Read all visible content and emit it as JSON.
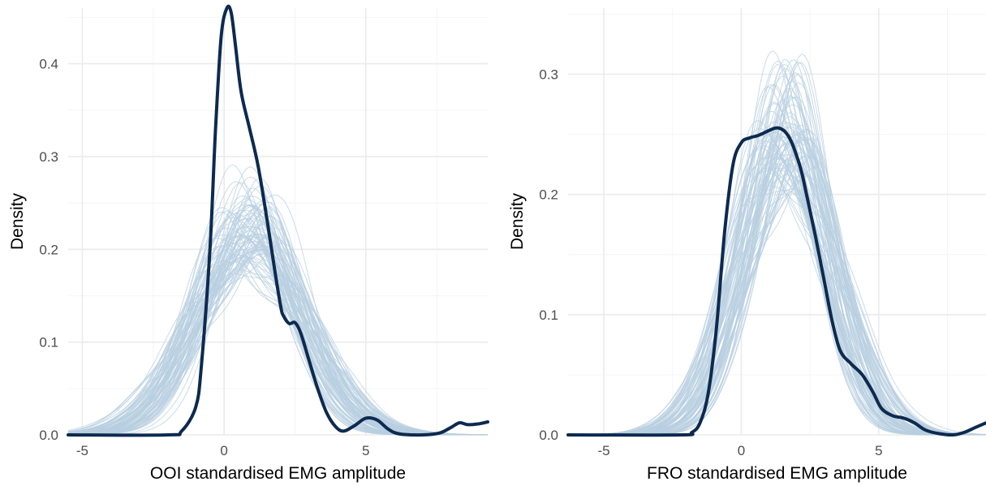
{
  "chart_data": [
    {
      "type": "line",
      "xlabel": "OOI standardised EMG amplitude",
      "ylabel": "Density",
      "xlim": [
        -5.5,
        9.3
      ],
      "ylim": [
        0,
        0.46
      ],
      "x_ticks": [
        -5,
        0,
        5
      ],
      "y_ticks": [
        0.0,
        0.1,
        0.2,
        0.3,
        0.4
      ],
      "y_tick_labels": [
        "0.0",
        "0.1",
        "0.2",
        "0.3",
        "0.4"
      ],
      "grid": true,
      "colors": {
        "observed": "#0d2a4f",
        "simulated": "#b8cfe0"
      },
      "series": [
        {
          "role": "observed",
          "x": [
            -5.5,
            -2.0,
            -1.5,
            -1.0,
            -0.8,
            -0.5,
            -0.3,
            -0.1,
            0.1,
            0.25,
            0.4,
            0.6,
            0.9,
            1.2,
            1.5,
            1.8,
            2.0,
            2.1,
            2.3,
            2.5,
            2.7,
            3.0,
            3.3,
            3.6,
            3.9,
            4.2,
            4.6,
            5.0,
            5.4,
            5.8,
            6.2,
            7.0,
            7.6,
            8.0,
            8.3,
            8.6,
            9.0,
            9.3
          ],
          "y": [
            0.0,
            0.0,
            0.004,
            0.03,
            0.075,
            0.2,
            0.33,
            0.43,
            0.46,
            0.455,
            0.42,
            0.37,
            0.33,
            0.29,
            0.235,
            0.175,
            0.138,
            0.128,
            0.12,
            0.121,
            0.11,
            0.08,
            0.05,
            0.025,
            0.01,
            0.004,
            0.01,
            0.018,
            0.016,
            0.006,
            0.001,
            0.0,
            0.002,
            0.008,
            0.013,
            0.011,
            0.012,
            0.014
          ]
        }
      ],
      "simulated_draws": {
        "count": 90,
        "shape": "normal",
        "mean_range": [
          0.3,
          1.5
        ],
        "sd_range": [
          1.45,
          2.2
        ]
      }
    },
    {
      "type": "line",
      "xlabel": "FRO standardised EMG amplitude",
      "ylabel": "Density",
      "xlim": [
        -6.3,
        8.9
      ],
      "ylim": [
        0,
        0.355
      ],
      "x_ticks": [
        -5,
        0,
        5
      ],
      "y_ticks": [
        0.0,
        0.1,
        0.2,
        0.3
      ],
      "y_tick_labels": [
        "0.0",
        "0.1",
        "0.2",
        "0.3"
      ],
      "grid": true,
      "colors": {
        "observed": "#0d2a4f",
        "simulated": "#b8cfe0"
      },
      "series": [
        {
          "role": "observed",
          "x": [
            -6.3,
            -2.2,
            -1.8,
            -1.5,
            -1.2,
            -0.9,
            -0.6,
            -0.3,
            0.0,
            0.3,
            0.6,
            0.9,
            1.2,
            1.4,
            1.6,
            1.8,
            2.0,
            2.2,
            2.4,
            2.7,
            3.0,
            3.3,
            3.6,
            4.0,
            4.4,
            4.8,
            5.1,
            5.5,
            5.9,
            6.3,
            6.7,
            7.2,
            7.7,
            8.1,
            8.5,
            8.9
          ],
          "y": [
            0.0,
            0.0,
            0.002,
            0.01,
            0.035,
            0.09,
            0.17,
            0.225,
            0.243,
            0.247,
            0.249,
            0.252,
            0.255,
            0.255,
            0.252,
            0.245,
            0.233,
            0.218,
            0.197,
            0.165,
            0.13,
            0.095,
            0.07,
            0.059,
            0.05,
            0.035,
            0.022,
            0.016,
            0.014,
            0.01,
            0.004,
            0.001,
            0.0,
            0.002,
            0.006,
            0.01
          ]
        }
      ],
      "simulated_draws": {
        "count": 90,
        "shape": "normal",
        "mean_range": [
          1.0,
          2.2
        ],
        "sd_range": [
          1.35,
          1.95
        ]
      }
    }
  ]
}
